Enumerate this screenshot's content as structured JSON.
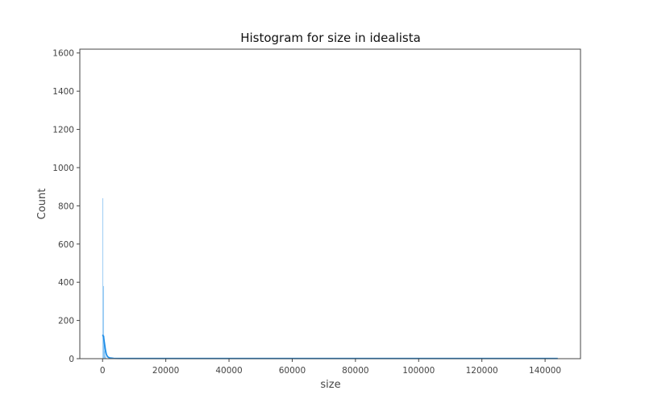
{
  "chart_data": {
    "type": "bar",
    "title": "Histogram for size in idealista",
    "xlabel": "size",
    "ylabel": "Count",
    "xlim": [
      -7200,
      151200
    ],
    "ylim": [
      0,
      1620
    ],
    "x_ticks": [
      "0",
      "20000",
      "40000",
      "60000",
      "80000",
      "100000",
      "120000",
      "140000"
    ],
    "y_ticks": [
      "0",
      "200",
      "400",
      "600",
      "800",
      "1000",
      "1200",
      "1400",
      "1600"
    ],
    "bin_width": 200,
    "bins": [
      {
        "x0": 0,
        "x1": 200,
        "count": 840
      },
      {
        "x0": 200,
        "x1": 400,
        "count": 380
      },
      {
        "x0": 400,
        "x1": 600,
        "count": 120
      },
      {
        "x0": 600,
        "x1": 800,
        "count": 40
      },
      {
        "x0": 800,
        "x1": 1000,
        "count": 15
      },
      {
        "x0": 1000,
        "x1": 1200,
        "count": 6
      }
    ],
    "kde": [
      {
        "x": 0,
        "y": 125
      },
      {
        "x": 300,
        "y": 115
      },
      {
        "x": 600,
        "y": 80
      },
      {
        "x": 900,
        "y": 45
      },
      {
        "x": 1200,
        "y": 22
      },
      {
        "x": 1600,
        "y": 10
      },
      {
        "x": 2200,
        "y": 4
      },
      {
        "x": 3500,
        "y": 1.5
      },
      {
        "x": 6000,
        "y": 1
      },
      {
        "x": 144000,
        "y": 1
      }
    ],
    "color": "#1f8ee8",
    "grid": false
  }
}
